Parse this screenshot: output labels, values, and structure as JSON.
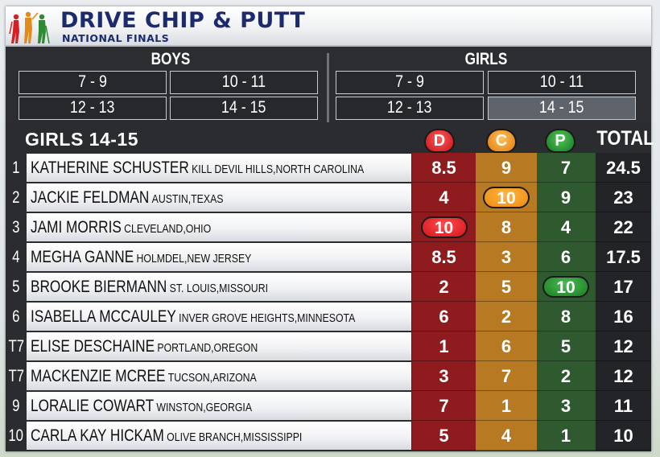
{
  "header": {
    "title": "DRIVE CHIP & PUTT",
    "subtitle": "NATIONAL FINALS"
  },
  "nav": {
    "boys": {
      "label": "BOYS",
      "buttons": [
        "7 - 9",
        "10 - 11",
        "12 - 13",
        "14 - 15"
      ]
    },
    "girls": {
      "label": "GIRLS",
      "buttons": [
        "7 - 9",
        "10 - 11",
        "12 - 13",
        "14 - 15"
      ],
      "active": "14 - 15"
    }
  },
  "table": {
    "division": "GIRLS 14-15",
    "columns": {
      "drive": "D",
      "chip": "C",
      "putt": "P",
      "total": "TOTAL"
    },
    "rows": [
      {
        "rank": "1",
        "name": "KATHERINE SCHUSTER",
        "location": "KILL DEVIL HILLS,NORTH CAROLINA",
        "d": "8.5",
        "c": "9",
        "p": "7",
        "total": "24.5",
        "highlight": ""
      },
      {
        "rank": "2",
        "name": "JACKIE FELDMAN",
        "location": "AUSTIN,TEXAS",
        "d": "4",
        "c": "10",
        "p": "9",
        "total": "23",
        "highlight": "c"
      },
      {
        "rank": "3",
        "name": "JAMI MORRIS",
        "location": "CLEVELAND,OHIO",
        "d": "10",
        "c": "8",
        "p": "4",
        "total": "22",
        "highlight": "d"
      },
      {
        "rank": "4",
        "name": "MEGHA GANNE",
        "location": "HOLMDEL,NEW JERSEY",
        "d": "8.5",
        "c": "3",
        "p": "6",
        "total": "17.5",
        "highlight": ""
      },
      {
        "rank": "5",
        "name": "BROOKE BIERMANN",
        "location": "ST. LOUIS,MISSOURI",
        "d": "2",
        "c": "5",
        "p": "10",
        "total": "17",
        "highlight": "p"
      },
      {
        "rank": "6",
        "name": "ISABELLA MCCAULEY",
        "location": "INVER GROVE HEIGHTS,MINNESOTA",
        "d": "6",
        "c": "2",
        "p": "8",
        "total": "16",
        "highlight": ""
      },
      {
        "rank": "T7",
        "name": "ELISE DESCHAINE",
        "location": "PORTLAND,OREGON",
        "d": "1",
        "c": "6",
        "p": "5",
        "total": "12",
        "highlight": ""
      },
      {
        "rank": "T7",
        "name": "MACKENZIE MCREE",
        "location": "TUCSON,ARIZONA",
        "d": "3",
        "c": "7",
        "p": "2",
        "total": "12",
        "highlight": ""
      },
      {
        "rank": "9",
        "name": "LORALIE COWART",
        "location": "WINSTON,GEORGIA",
        "d": "7",
        "c": "1",
        "p": "3",
        "total": "11",
        "highlight": ""
      },
      {
        "rank": "10",
        "name": "CARLA KAY HICKAM",
        "location": "OLIVE BRANCH,MISSISSIPPI",
        "d": "5",
        "c": "4",
        "p": "1",
        "total": "10",
        "highlight": ""
      }
    ]
  },
  "colors": {
    "drive": "#8e1b1e",
    "chip": "#b77a22",
    "putt": "#2f5a30",
    "title": "#1c2b6e"
  }
}
